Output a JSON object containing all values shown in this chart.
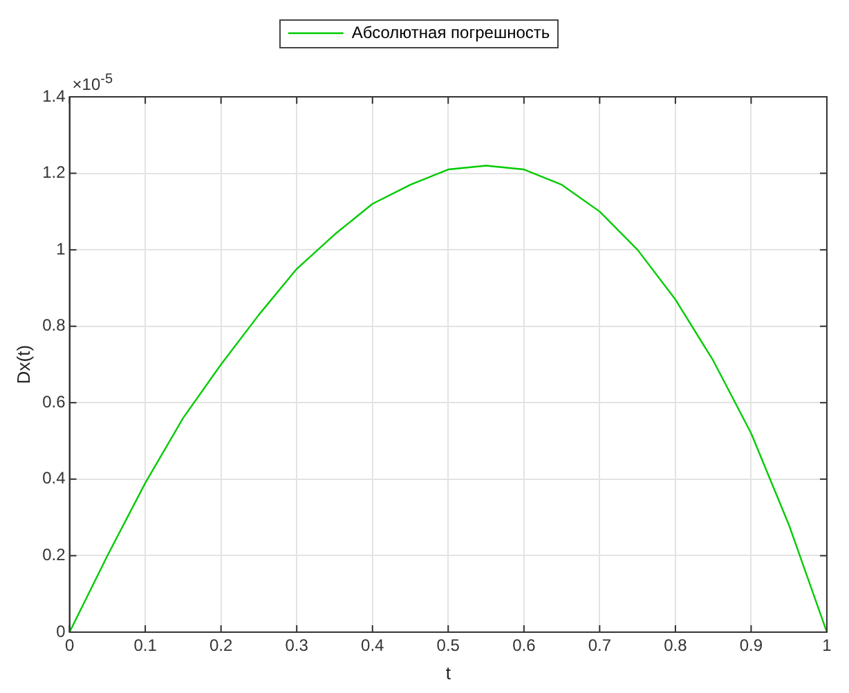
{
  "chart_data": {
    "type": "line",
    "xlabel": "t",
    "ylabel": "Dx(t)",
    "annotations": [
      "×10$^{-5}$"
    ],
    "x": [
      0,
      0.05,
      0.1,
      0.15,
      0.2,
      0.25,
      0.3,
      0.35,
      0.4,
      0.45,
      0.5,
      0.55,
      0.6,
      0.65,
      0.7,
      0.75,
      0.8,
      0.85,
      0.9,
      0.95,
      1
    ],
    "series": [
      {
        "name": "Абсолютная погрешность",
        "color": "#00cc00",
        "values": [
          0,
          0.2,
          0.39,
          0.56,
          0.7,
          0.83,
          0.95,
          1.04,
          1.12,
          1.17,
          1.21,
          1.22,
          1.21,
          1.17,
          1.1,
          1,
          0.87,
          0.71,
          0.52,
          0.28,
          0
        ]
      }
    ],
    "xlim": [
      0,
      1
    ],
    "xticks": [
      0,
      0.1,
      0.2,
      0.3,
      0.4,
      0.5,
      0.6,
      0.7,
      0.8,
      0.9,
      1
    ],
    "ylim": [
      0,
      1.4
    ],
    "yticks": [
      0,
      0.2,
      0.4,
      0.6,
      0.8,
      1,
      1.2,
      1.4
    ],
    "grid": true,
    "legend": "top",
    "marker": "none",
    "line_style": "solid"
  }
}
